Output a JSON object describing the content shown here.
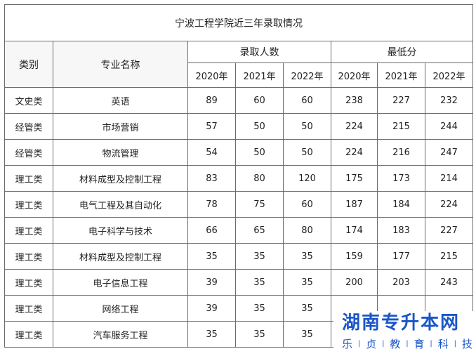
{
  "title": "宁波工程学院近三年录取情况",
  "headers": {
    "category": "类别",
    "major": "专业名称",
    "admitted": "录取人数",
    "min_score": "最低分",
    "years": [
      "2020年",
      "2021年",
      "2022年"
    ]
  },
  "rows": [
    {
      "category": "文史类",
      "major": "英语",
      "a2020": "89",
      "a2021": "60",
      "a2022": "60",
      "s2020": "238",
      "s2021": "227",
      "s2022": "232"
    },
    {
      "category": "经管类",
      "major": "市场营销",
      "a2020": "57",
      "a2021": "50",
      "a2022": "50",
      "s2020": "224",
      "s2021": "215",
      "s2022": "244"
    },
    {
      "category": "经管类",
      "major": "物流管理",
      "a2020": "54",
      "a2021": "50",
      "a2022": "50",
      "s2020": "224",
      "s2021": "216",
      "s2022": "247"
    },
    {
      "category": "理工类",
      "major": "材料成型及控制工程",
      "a2020": "83",
      "a2021": "80",
      "a2022": "120",
      "s2020": "175",
      "s2021": "173",
      "s2022": "214"
    },
    {
      "category": "理工类",
      "major": "电气工程及其自动化",
      "a2020": "78",
      "a2021": "75",
      "a2022": "60",
      "s2020": "187",
      "s2021": "184",
      "s2022": "224"
    },
    {
      "category": "理工类",
      "major": "电子科学与技术",
      "a2020": "66",
      "a2021": "65",
      "a2022": "80",
      "s2020": "174",
      "s2021": "183",
      "s2022": "227"
    },
    {
      "category": "理工类",
      "major": "材料成型及控制工程",
      "a2020": "35",
      "a2021": "35",
      "a2022": "35",
      "s2020": "159",
      "s2021": "177",
      "s2022": "215"
    },
    {
      "category": "理工类",
      "major": "电子信息工程",
      "a2020": "39",
      "a2021": "35",
      "a2022": "35",
      "s2020": "200",
      "s2021": "203",
      "s2022": "243"
    },
    {
      "category": "理工类",
      "major": "网络工程",
      "a2020": "39",
      "a2021": "35",
      "a2022": "35",
      "s2020": "",
      "s2021": "",
      "s2022": ""
    },
    {
      "category": "理工类",
      "major": "汽车服务工程",
      "a2020": "35",
      "a2021": "35",
      "a2022": "35",
      "s2020": "",
      "s2021": "",
      "s2022": ""
    }
  ],
  "watermark": {
    "title": "湖南专升本网",
    "subtitle": [
      "乐",
      "贞",
      "教",
      "育",
      "科",
      "技"
    ],
    "color": "#1a56c8"
  }
}
